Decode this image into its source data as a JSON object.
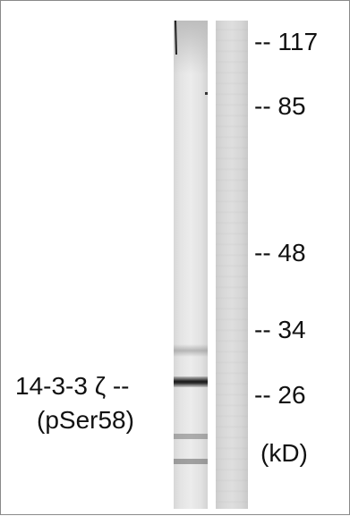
{
  "blot": {
    "markers": [
      {
        "id": "marker-117",
        "text": "-- 117"
      },
      {
        "id": "marker-85",
        "text": "-- 85"
      },
      {
        "id": "marker-48",
        "text": "-- 48"
      },
      {
        "id": "marker-34",
        "text": "-- 34"
      },
      {
        "id": "marker-26",
        "text": "-- 26"
      }
    ],
    "unit_label": "(kD)",
    "band_label": {
      "line1": "14-3-3 ζ --",
      "line2": "(pSer58)"
    }
  }
}
